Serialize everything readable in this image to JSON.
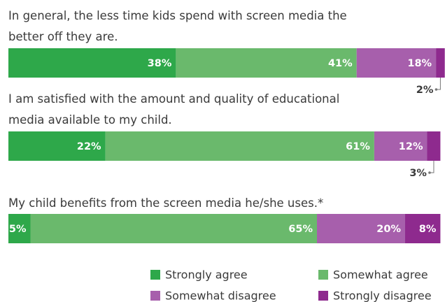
{
  "chart_data": {
    "type": "stacked-bar-horizontal",
    "categories": [
      "In general, the less time kids spend with screen media the better off they are.",
      "I am satisfied with the amount and quality of educational media available to my child.",
      "My child benefits from the screen media he/she uses.*"
    ],
    "series": [
      {
        "name": "Strongly agree",
        "color": "#2ea84a",
        "values": [
          38,
          22,
          5
        ],
        "value_labels": [
          "38%",
          "22%",
          "5%"
        ]
      },
      {
        "name": "Somewhat agree",
        "color": "#6ab96c",
        "values": [
          41,
          61,
          65
        ],
        "value_labels": [
          "41%",
          "61%",
          "65%"
        ]
      },
      {
        "name": "Somewhat disagree",
        "color": "#a75fac",
        "values": [
          18,
          12,
          20
        ],
        "value_labels": [
          "18%",
          "12%",
          "20%"
        ]
      },
      {
        "name": "Strongly disagree",
        "color": "#8e2a8e",
        "values": [
          2,
          3,
          8
        ],
        "value_labels": [
          "2%",
          "3%",
          "8%"
        ]
      }
    ]
  }
}
